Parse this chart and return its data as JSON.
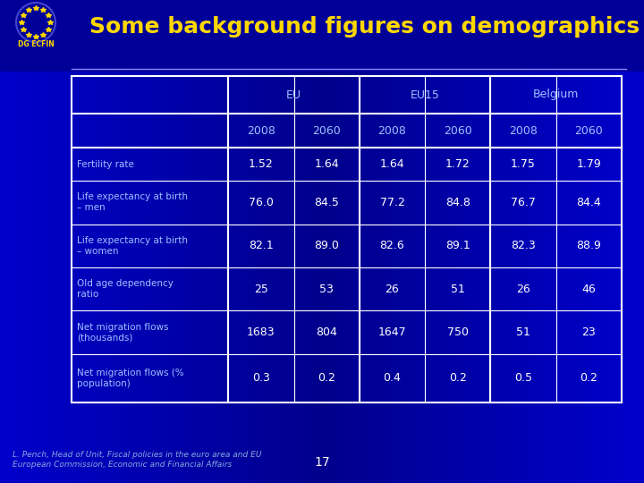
{
  "title": "Some background figures on demographics",
  "title_color": "#FFD700",
  "bg_color_outer": "#000080",
  "bg_color_inner": "#00008B",
  "table_inner_bg": "#000070",
  "cell_text_color": "#FFFFFF",
  "header_text_color": "#A0C0FF",
  "row_label_color": "#A0C0FF",
  "data_text_color": "#FFFFFF",
  "footer_text": "L. Pench, Head of Unit, Fiscal policies in the euro area and EU\nEuropean Commission, Economic and Financial Affairs",
  "page_number": "17",
  "col_groups": [
    "EU",
    "EU15",
    "Belgium"
  ],
  "col_years": [
    "2008",
    "2060",
    "2008",
    "2060",
    "2008",
    "2060"
  ],
  "row_labels": [
    "Fertility rate",
    "Life expectancy at birth\n– men",
    "Life expectancy at birth\n– women",
    "Old age dependency\nratio",
    "Net migration flows\n(thousands)",
    "Net migration flows (%\npopulation)"
  ],
  "data": [
    [
      "1.52",
      "1.64",
      "1.64",
      "1.72",
      "1.75",
      "1.79"
    ],
    [
      "76.0",
      "84.5",
      "77.2",
      "84.8",
      "76.7",
      "84.4"
    ],
    [
      "82.1",
      "89.0",
      "82.6",
      "89.1",
      "82.3",
      "88.9"
    ],
    [
      "25",
      "53",
      "26",
      "51",
      "26",
      "46"
    ],
    [
      "1683",
      "804",
      "1647",
      "750",
      "51",
      "23"
    ],
    [
      "0.3",
      "0.2",
      "0.4",
      "0.2",
      "0.5",
      "0.2"
    ]
  ],
  "line_color": "#FFFFFF",
  "grid_line_color": "#FFFFFF"
}
